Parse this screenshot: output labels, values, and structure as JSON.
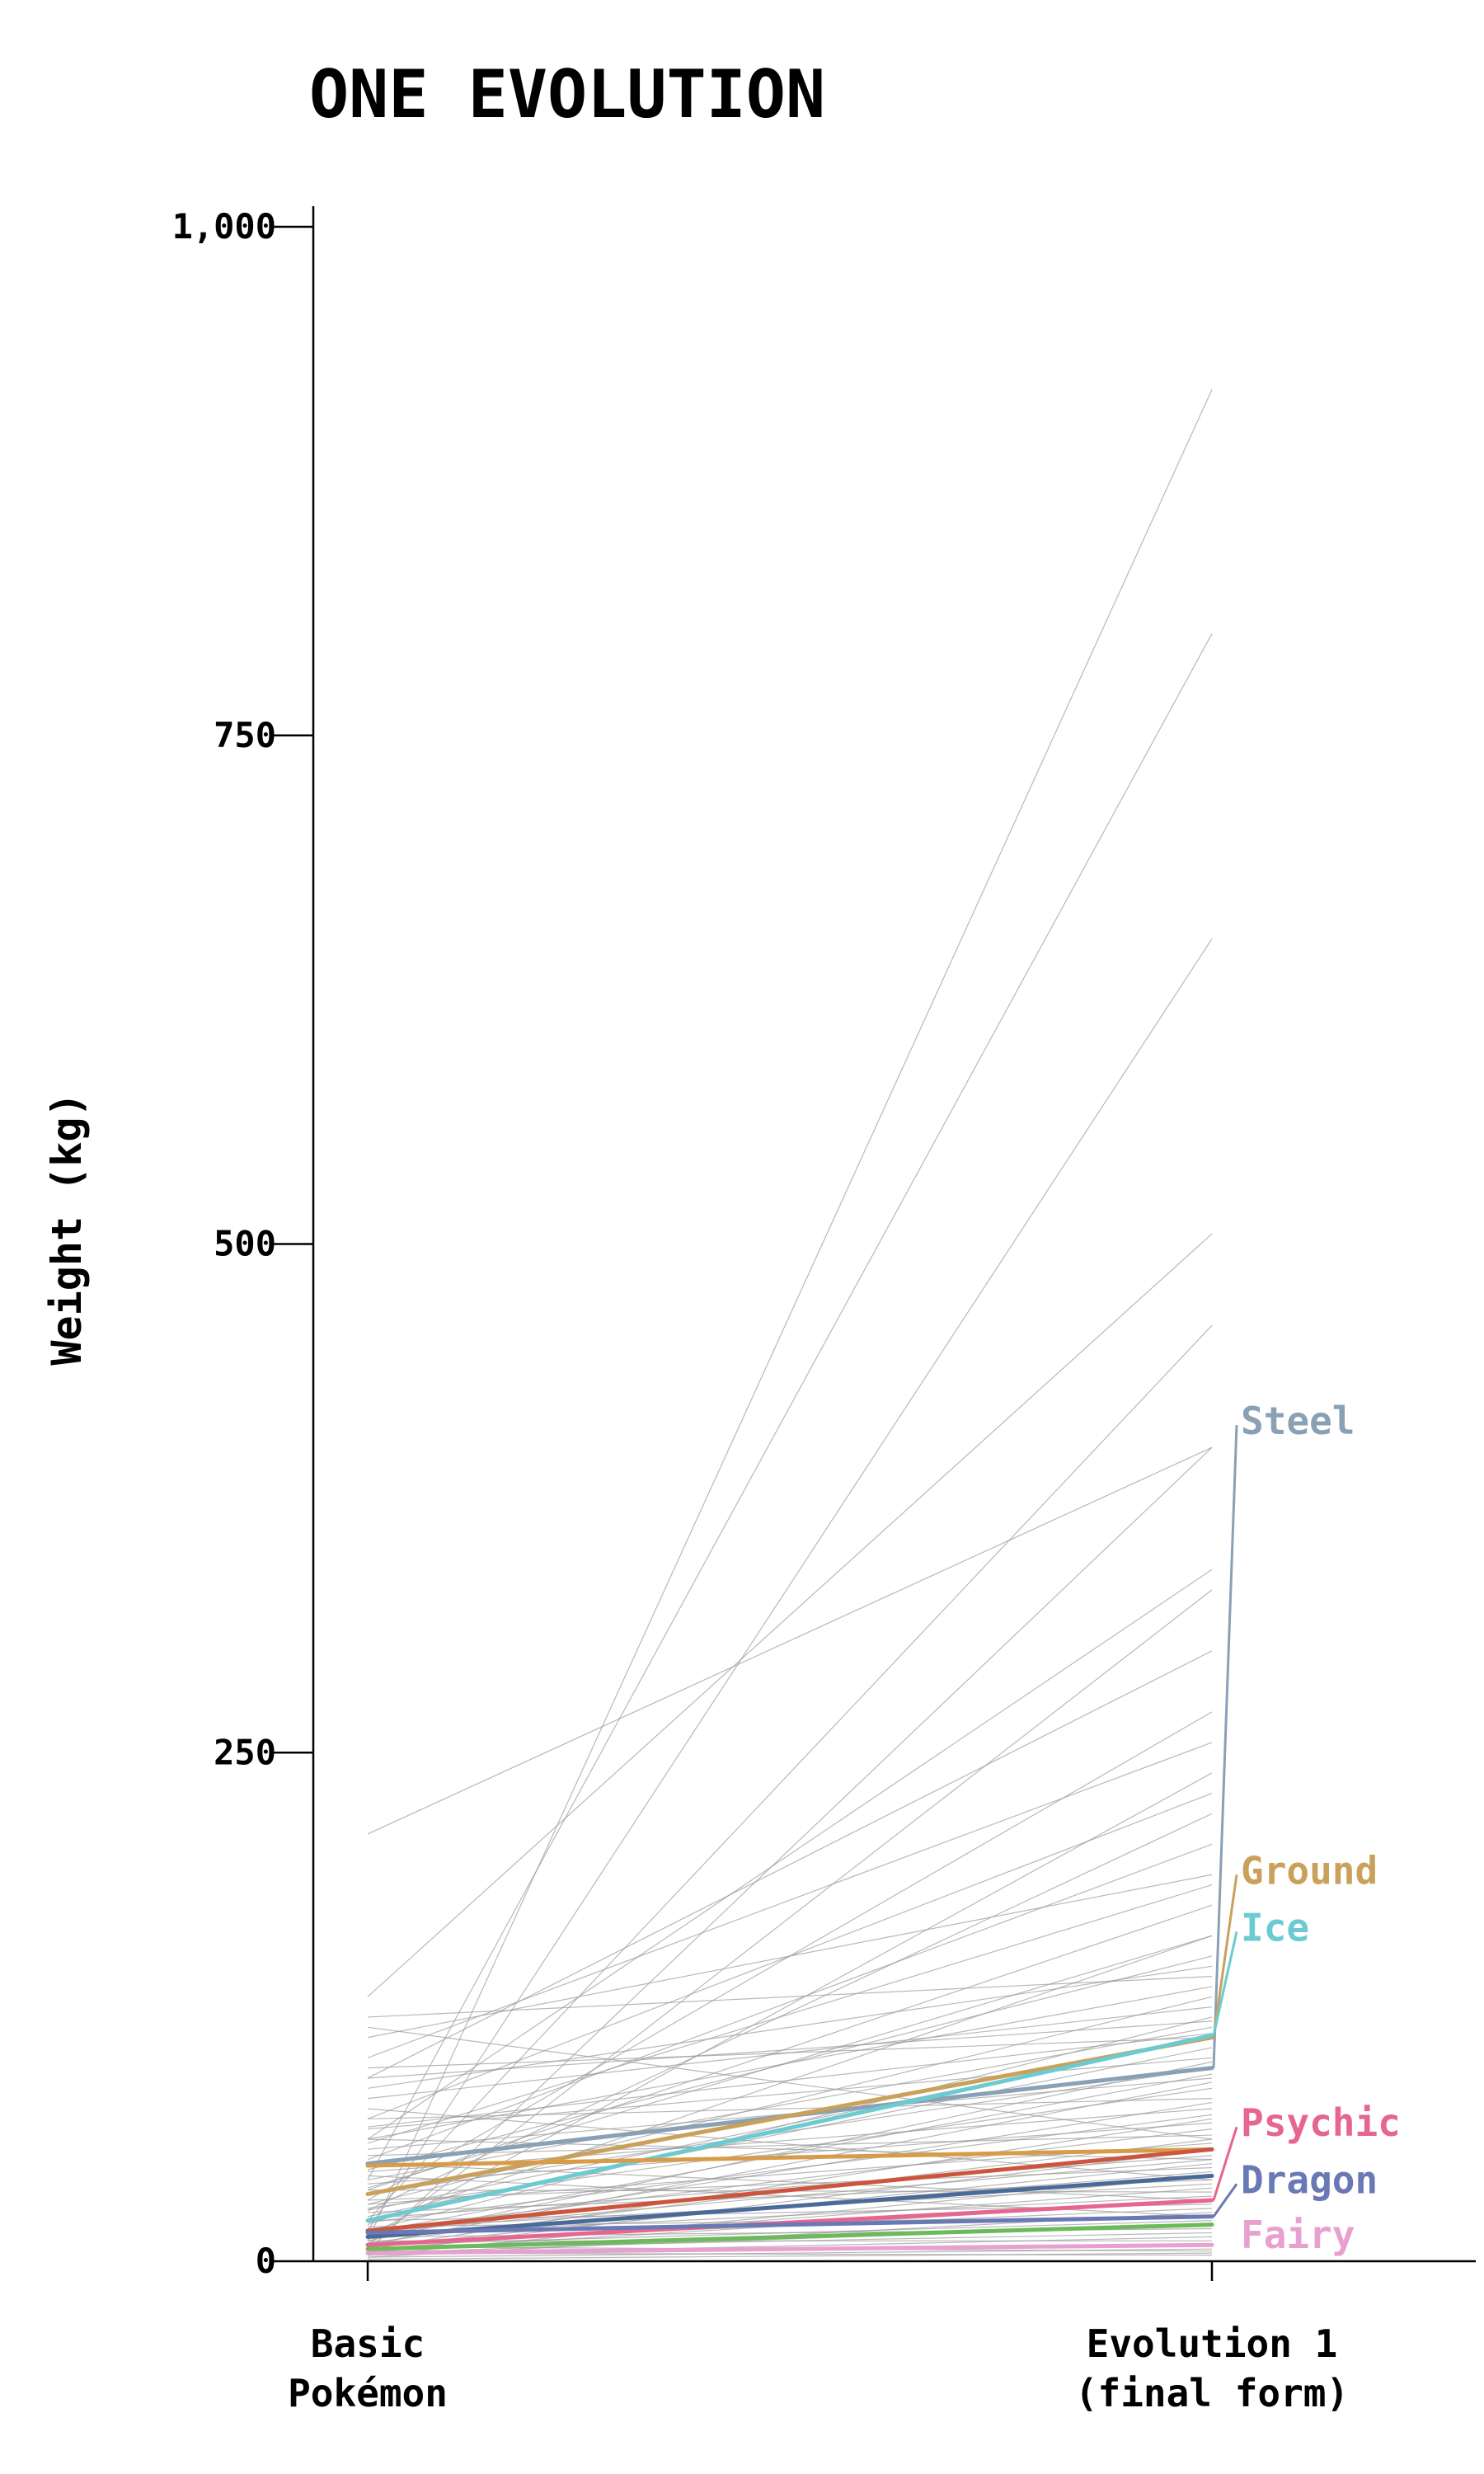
{
  "chart_data": {
    "type": "line",
    "title": "ONE EVOLUTION",
    "ylabel": "Weight (kg)",
    "xlabel": "",
    "categories": [
      "Basic\nPokémon",
      "Evolution 1\n(final form)"
    ],
    "ylim": [
      0,
      1000
    ],
    "yticks": [
      0,
      250,
      500,
      750,
      1000
    ],
    "ytick_labels": [
      "0",
      "250",
      "500",
      "750",
      "1,000"
    ],
    "grid": false,
    "background_lines": [
      [
        10,
        920
      ],
      [
        40,
        800
      ],
      [
        15,
        650
      ],
      [
        130,
        505
      ],
      [
        20,
        460
      ],
      [
        210,
        400
      ],
      [
        5,
        400
      ],
      [
        60,
        340
      ],
      [
        8,
        330
      ],
      [
        90,
        300
      ],
      [
        30,
        270
      ],
      [
        100,
        255
      ],
      [
        12,
        240
      ],
      [
        70,
        230
      ],
      [
        25,
        220
      ],
      [
        50,
        205
      ],
      [
        110,
        190
      ],
      [
        35,
        175
      ],
      [
        18,
        160
      ],
      [
        45,
        150
      ],
      [
        120,
        140
      ],
      [
        60,
        135
      ],
      [
        28,
        130
      ],
      [
        80,
        125
      ],
      [
        15,
        120
      ],
      [
        40,
        115
      ],
      [
        95,
        110
      ],
      [
        22,
        105
      ],
      [
        65,
        100
      ],
      [
        10,
        98
      ],
      [
        33,
        95
      ],
      [
        55,
        90
      ],
      [
        8,
        88
      ],
      [
        26,
        85
      ],
      [
        70,
        80
      ],
      [
        12,
        78
      ],
      [
        44,
        75
      ],
      [
        19,
        72
      ],
      [
        6,
        70
      ],
      [
        38,
        68
      ],
      [
        15,
        65
      ],
      [
        52,
        62
      ],
      [
        9,
        60
      ],
      [
        28,
        58
      ],
      [
        4,
        55
      ],
      [
        21,
        52
      ],
      [
        14,
        50
      ],
      [
        7,
        48
      ],
      [
        30,
        46
      ],
      [
        11,
        44
      ],
      [
        3,
        42
      ],
      [
        24,
        40
      ],
      [
        16,
        38
      ],
      [
        6,
        36
      ],
      [
        35,
        34
      ],
      [
        13,
        32
      ],
      [
        5,
        30
      ],
      [
        20,
        28
      ],
      [
        9,
        26
      ],
      [
        2,
        24
      ],
      [
        17,
        22
      ],
      [
        8,
        20
      ],
      [
        4,
        18
      ],
      [
        12,
        16
      ],
      [
        6,
        14
      ],
      [
        3,
        12
      ],
      [
        10,
        10
      ],
      [
        5,
        8
      ],
      [
        2,
        6
      ],
      [
        7,
        5
      ],
      [
        1,
        4
      ],
      [
        4,
        3
      ],
      [
        90,
        118
      ],
      [
        115,
        60
      ],
      [
        75,
        40
      ],
      [
        60,
        50
      ],
      [
        48,
        30
      ],
      [
        42,
        22
      ],
      [
        85,
        145
      ],
      [
        25,
        110
      ],
      [
        36,
        160
      ],
      [
        58,
        185
      ],
      [
        14,
        92
      ],
      [
        66,
        112
      ]
    ],
    "series": [
      {
        "name": "Steel",
        "values": [
          48,
          95
        ],
        "color": "#8aa0b4"
      },
      {
        "name": "Ground",
        "values": [
          33,
          110
        ],
        "color": "#c9a15a"
      },
      {
        "name": "Ice",
        "values": [
          20,
          111
        ],
        "color": "#6ccbd1"
      },
      {
        "name": "",
        "values": [
          47,
          55
        ],
        "color": "#d89b4a"
      },
      {
        "name": "",
        "values": [
          15,
          55
        ],
        "color": "#cc5540"
      },
      {
        "name": "",
        "values": [
          12,
          42
        ],
        "color": "#4a6a9a"
      },
      {
        "name": "Psychic",
        "values": [
          8,
          30
        ],
        "color": "#e6668f"
      },
      {
        "name": "Dragon",
        "values": [
          14,
          22
        ],
        "color": "#6a78b4"
      },
      {
        "name": "",
        "values": [
          6,
          18
        ],
        "color": "#6cba5a"
      },
      {
        "name": "Fairy",
        "values": [
          4,
          8
        ],
        "color": "#e8a0d0"
      }
    ],
    "label_positions": {
      "Steel": 413,
      "Ground": 192,
      "Ice": 164,
      "Psychic": 68,
      "Dragon": 40,
      "Fairy": 13
    }
  }
}
